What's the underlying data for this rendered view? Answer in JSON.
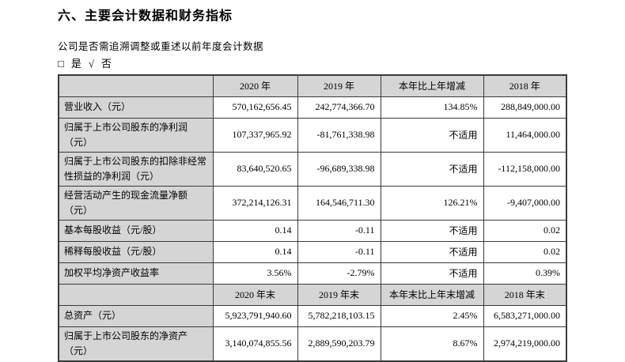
{
  "title": "六、主要会计数据和财务指标",
  "subtitle": "公司是否需追溯调整或重述以前年度会计数据",
  "check_line": {
    "box_symbol": "□",
    "yes_label": "是",
    "check_symbol": "√",
    "no_label": "否"
  },
  "colors": {
    "cell_gray": "#d5d5d5",
    "border": "#3a3a3a",
    "page_bg": "#ffffff",
    "text": "#000000"
  },
  "table": {
    "sections": [
      {
        "header": [
          "",
          "2020 年",
          "2019 年",
          "本年比上年增减",
          "2018 年"
        ],
        "rows": [
          [
            "营业收入（元）",
            "570,162,656.45",
            "242,774,366.70",
            "134.85%",
            "288,849,000.00"
          ],
          [
            "归属于上市公司股东的净利润（元）",
            "107,337,965.92",
            "-81,761,338.98",
            "不适用",
            "11,464,000.00"
          ],
          [
            "归属于上市公司股东的扣除非经常性损益的净利润（元）",
            "83,640,520.65",
            "-96,689,338.98",
            "不适用",
            "-112,158,000.00"
          ],
          [
            "经营活动产生的现金流量净额（元）",
            "372,214,126.31",
            "164,546,711.30",
            "126.21%",
            "-9,407,000.00"
          ],
          [
            "基本每股收益（元/股）",
            "0.14",
            "-0.11",
            "不适用",
            "0.02"
          ],
          [
            "稀释每股收益（元/股）",
            "0.14",
            "-0.11",
            "不适用",
            "0.02"
          ],
          [
            "加权平均净资产收益率",
            "3.56%",
            "-2.79%",
            "不适用",
            "0.39%"
          ]
        ]
      },
      {
        "header": [
          "",
          "2020 年末",
          "2019 年末",
          "本年末比上年末增减",
          "2018 年末"
        ],
        "rows": [
          [
            "总资产（元）",
            "5,923,791,940.60",
            "5,782,218,103.15",
            "2.45%",
            "6,583,271,000.00"
          ],
          [
            "归属于上市公司股东的净资产（元）",
            "3,140,074,855.56",
            "2,889,590,203.79",
            "8.67%",
            "2,974,219,000.00"
          ]
        ]
      }
    ]
  }
}
